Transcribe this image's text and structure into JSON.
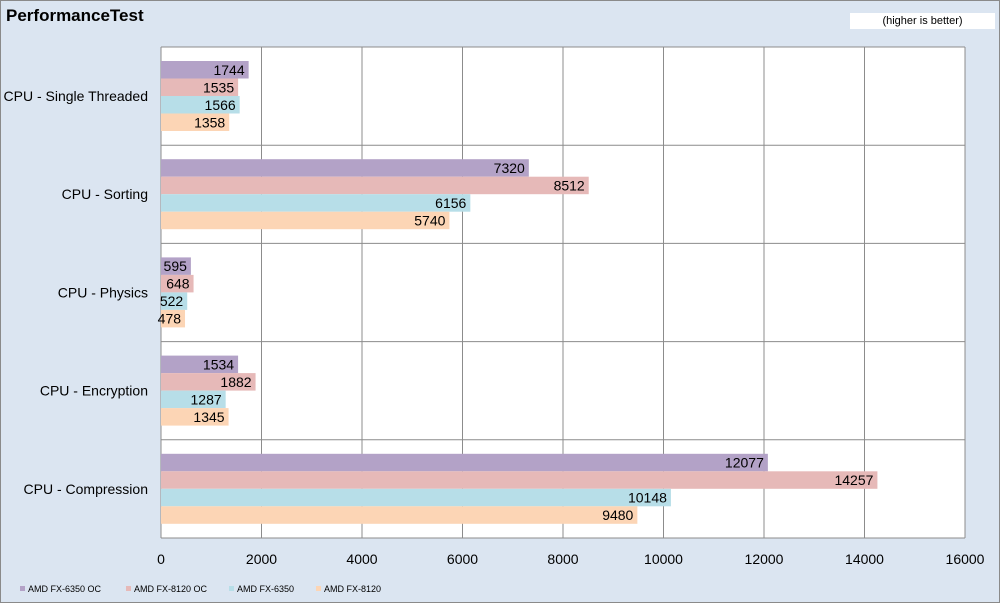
{
  "header": {
    "title": "PerformanceTest",
    "note": "(higher is better)"
  },
  "chart_data": {
    "type": "bar",
    "orientation": "horizontal",
    "title": "PerformanceTest",
    "subtitle": "(higher is better)",
    "categories": [
      "CPU - Single Threaded",
      "CPU - Sorting",
      "CPU - Physics",
      "CPU - Encryption",
      "CPU - Compression"
    ],
    "series": [
      {
        "name": "AMD FX-6350 OC",
        "color": "#b3a2c7",
        "values": [
          1744,
          7320,
          595,
          1534,
          12077
        ]
      },
      {
        "name": "AMD FX-8120 OC",
        "color": "#e6b9b8",
        "values": [
          1535,
          8512,
          648,
          1882,
          14257
        ]
      },
      {
        "name": "AMD FX-6350",
        "color": "#b7dee8",
        "values": [
          1566,
          6156,
          522,
          1287,
          10148
        ]
      },
      {
        "name": "AMD FX-8120",
        "color": "#fcd5b5",
        "values": [
          1358,
          5740,
          478,
          1345,
          9480
        ]
      }
    ],
    "xlim": [
      0,
      16000
    ],
    "xticks": [
      0,
      2000,
      4000,
      6000,
      8000,
      10000,
      12000,
      14000,
      16000
    ],
    "grid": true,
    "legend_position": "bottom-left",
    "data_labels": true
  }
}
